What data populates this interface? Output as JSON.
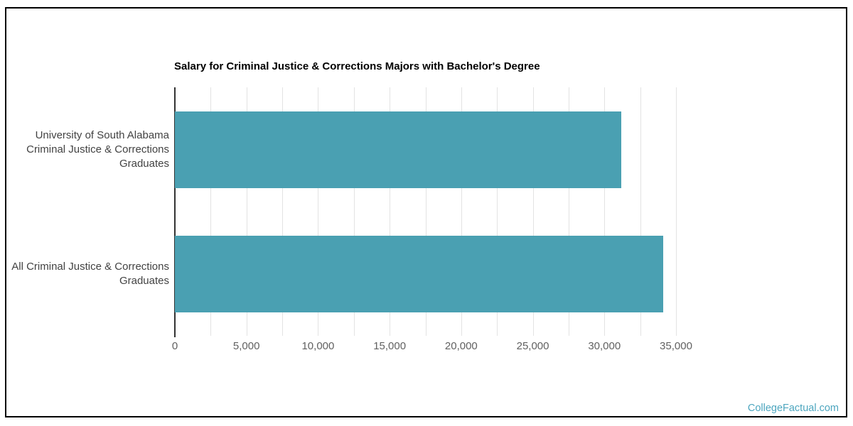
{
  "footer": {
    "brand": "CollegeFactual.com"
  },
  "chart_data": {
    "type": "bar",
    "orientation": "horizontal",
    "title": "Salary for Criminal Justice & Corrections Majors with Bachelor's Degree",
    "categories": [
      "University of South Alabama Criminal Justice & Corrections Graduates",
      "All Criminal Justice & Corrections Graduates"
    ],
    "categories_lines": [
      [
        "University of South Alabama",
        "Criminal Justice & Corrections",
        "Graduates"
      ],
      [
        "All Criminal Justice & Corrections",
        "Graduates"
      ]
    ],
    "values": [
      31200,
      34100
    ],
    "xlabel": "",
    "ylabel": "",
    "xlim": [
      0,
      35000
    ],
    "xticks": [
      0,
      5000,
      10000,
      15000,
      20000,
      25000,
      30000,
      35000
    ],
    "xtick_labels": [
      "0",
      "5,000",
      "10,000",
      "15,000",
      "20,000",
      "25,000",
      "30,000",
      "35,000"
    ],
    "gridline_step": 2500,
    "grid": true,
    "legend": false,
    "colors": {
      "bar": "#4aa0b2",
      "axis": "#333333",
      "gridline": "#e3e3e3",
      "tick_text": "#616161",
      "category_text": "#424242",
      "title_text": "#000000",
      "brand_text": "#4da6bf"
    }
  }
}
